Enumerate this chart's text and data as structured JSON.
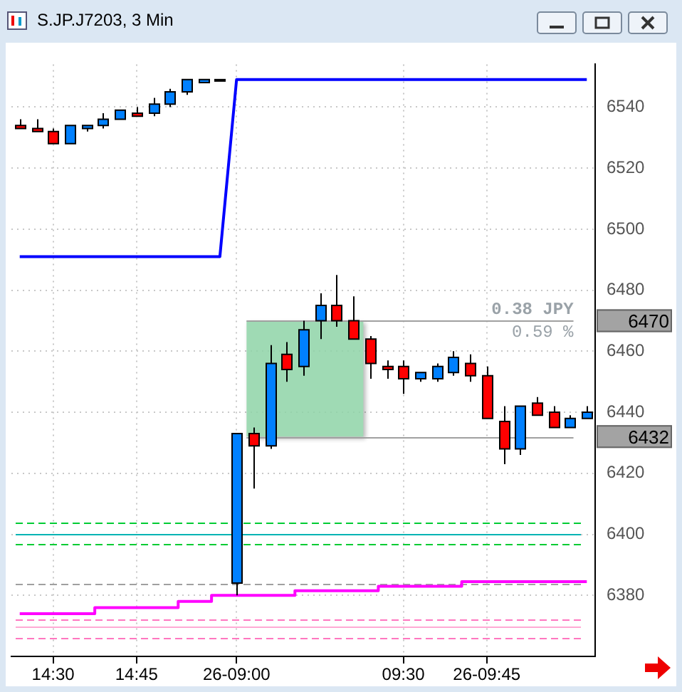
{
  "chart_data": {
    "type": "candlestick",
    "title": "S.JP.J7203, 3 Min",
    "categories": [
      null,
      null,
      "14:30",
      null,
      null,
      null,
      null,
      "14:45",
      null,
      null,
      null,
      null,
      null,
      "26-09:00",
      null,
      null,
      null,
      null,
      null,
      null,
      null,
      null,
      null,
      "09:30",
      null,
      null,
      null,
      null,
      "26-09:45",
      null,
      null,
      null,
      null,
      null,
      null
    ],
    "ohlc": [
      [
        6534,
        6536,
        6533,
        6533
      ],
      [
        6533,
        6536,
        6532,
        6532
      ],
      [
        6532,
        6533,
        6528,
        6528
      ],
      [
        6528,
        6534,
        6528,
        6534
      ],
      [
        6533,
        6534,
        6532,
        6534
      ],
      [
        6534,
        6538,
        6533,
        6536
      ],
      [
        6536,
        6539,
        6536,
        6539
      ],
      [
        6538,
        6540,
        6537,
        6537
      ],
      [
        6538,
        6543,
        6537,
        6541
      ],
      [
        6541,
        6546,
        6540,
        6545
      ],
      [
        6545,
        6549,
        6544,
        6549
      ],
      [
        6548,
        6549,
        6548,
        6549
      ],
      [
        6549,
        6549,
        6549,
        6549
      ],
      [
        6384,
        6433,
        6380,
        6433
      ],
      [
        6433,
        6435,
        6415,
        6429
      ],
      [
        6429,
        6462,
        6428,
        6456
      ],
      [
        6459,
        6463,
        6450,
        6454
      ],
      [
        6455,
        6470,
        6452,
        6467
      ],
      [
        6470,
        6479,
        6464,
        6475
      ],
      [
        6475,
        6485,
        6468,
        6470
      ],
      [
        6470,
        6478,
        6464,
        6464
      ],
      [
        6464,
        6465,
        6451,
        6456
      ],
      [
        6455,
        6457,
        6451,
        6454
      ],
      [
        6455,
        6457,
        6446,
        6451
      ],
      [
        6451,
        6453,
        6450,
        6453
      ],
      [
        6451,
        6456,
        6450,
        6455
      ],
      [
        6453,
        6460,
        6452,
        6458
      ],
      [
        6456,
        6459,
        6450,
        6452
      ],
      [
        6452,
        6455,
        6438,
        6438
      ],
      [
        6437,
        6442,
        6423,
        6428
      ],
      [
        6428,
        6442,
        6426,
        6442
      ],
      [
        6443,
        6445,
        6439,
        6439
      ],
      [
        6440,
        6442,
        6435,
        6435
      ],
      [
        6435,
        6439,
        6435,
        6438
      ],
      [
        6438,
        6442,
        6438,
        6440
      ]
    ],
    "colors": [
      "#ff0000",
      "#ff0000",
      "#ff0000",
      "#0080ff",
      "#0080ff",
      "#0080ff",
      "#0080ff",
      "#ff0000",
      "#0080ff",
      "#0080ff",
      "#0080ff",
      "#0080ff",
      "#0080ff",
      "#0080ff",
      "#ff0000",
      "#0080ff",
      "#ff0000",
      "#0080ff",
      "#0080ff",
      "#ff0000",
      "#ff0000",
      "#ff0000",
      "#ff0000",
      "#ff0000",
      "#0080ff",
      "#0080ff",
      "#0080ff",
      "#ff0000",
      "#ff0000",
      "#ff0000",
      "#0080ff",
      "#ff0000",
      "#ff0000",
      "#0080ff",
      "#0080ff"
    ],
    "series": [
      {
        "type": "line",
        "color": "#0000ff",
        "values": [
          6491,
          6491,
          6491,
          6491,
          6491,
          6491,
          6491,
          6491,
          6491,
          6491,
          6491,
          6491,
          6491,
          6549,
          6549,
          6549,
          6549,
          6549,
          6549,
          6549,
          6549,
          6549,
          6549,
          6549,
          6549,
          6549,
          6549,
          6549,
          6549,
          6549,
          6549,
          6549,
          6549,
          6549,
          6549
        ]
      },
      {
        "type": "step",
        "color": "#ff00ff",
        "values": [
          6374,
          6374,
          6374,
          6374,
          6374,
          6376,
          6376,
          6376,
          6376,
          6376,
          6378,
          6378,
          6380,
          6380,
          6380,
          6380,
          6380,
          6381.5,
          6381.5,
          6381.5,
          6381.5,
          6381.5,
          6383,
          6383,
          6383,
          6383,
          6383,
          6384.5,
          6384.5,
          6384.5,
          6384.5,
          6384.5,
          6384.5,
          6384.5,
          6384.5
        ]
      }
    ],
    "ylim": [
      6360,
      6554
    ],
    "yticks": [
      6380,
      6400,
      6420,
      6440,
      6460,
      6480,
      6500,
      6520,
      6540
    ],
    "grid": true,
    "legend": false,
    "ref_lines": [
      {
        "axis": "y",
        "value": 6404,
        "color": "#00cc33",
        "line_style": "dashed"
      },
      {
        "axis": "y",
        "value": 6400,
        "color": "#00b4b4",
        "line_style": "solid"
      },
      {
        "axis": "y",
        "value": 6397,
        "color": "#00cc33",
        "line_style": "dashed"
      },
      {
        "axis": "y",
        "value": 6384,
        "color": "#a0a0a0",
        "line_style": "dashed"
      },
      {
        "axis": "y",
        "value": 6372,
        "color": "#ff77c0",
        "line_style": "dashed"
      },
      {
        "axis": "y",
        "value": 6370,
        "color": "#ffaad4",
        "line_style": "solid"
      },
      {
        "axis": "y",
        "value": 6366,
        "color": "#ff77c0",
        "line_style": "dashed"
      },
      {
        "axis": "y",
        "value": 6470,
        "label": "6470",
        "color": "#a0a0a0",
        "line_style": "solid"
      },
      {
        "axis": "y",
        "value": 6432,
        "label": "6432",
        "color": "#a0a0a0",
        "line_style": "solid"
      }
    ],
    "bands": [
      {
        "axis": "y",
        "from": 6432,
        "to": 6470,
        "color": "#8fd4a8"
      }
    ],
    "annotations": [
      "0.38 JPY",
      "0.59 %"
    ]
  }
}
